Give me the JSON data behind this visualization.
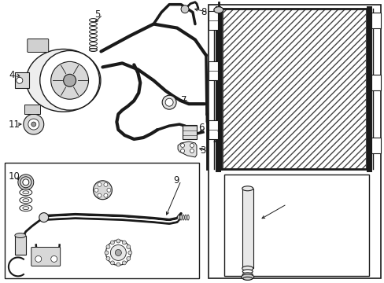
{
  "bg_color": "#ffffff",
  "line_color": "#1a1a1a",
  "fig_width": 4.89,
  "fig_height": 3.6,
  "dpi": 100,
  "font_size": 7.5
}
